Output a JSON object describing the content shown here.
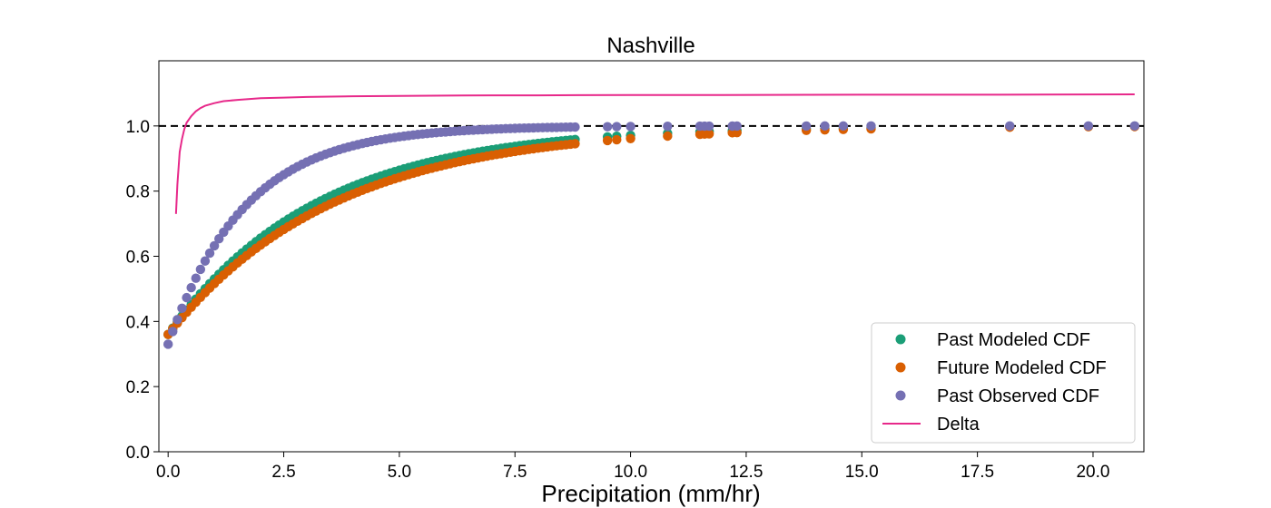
{
  "chart_data": {
    "type": "scatter",
    "title": "Nashville",
    "xlabel": "Precipitation (mm/hr)",
    "ylabel": "",
    "xlim": [
      -0.2,
      21.1
    ],
    "ylim": [
      0.0,
      1.2
    ],
    "xticks": [
      "0.0",
      "2.5",
      "5.0",
      "7.5",
      "10.0",
      "12.5",
      "15.0",
      "17.5",
      "20.0"
    ],
    "yticks": [
      "0.0",
      "0.2",
      "0.4",
      "0.6",
      "0.8",
      "1.0"
    ],
    "grid": false,
    "legend_position": "lower-right",
    "reference_line": {
      "y": 1.0,
      "style": "dashed",
      "color": "#000000"
    },
    "series": [
      {
        "name": "Past Modeled CDF",
        "kind": "scatter",
        "color": "#1b9e77",
        "model": {
          "type": "exp",
          "a": 0.36,
          "k": 0.31
        },
        "x_dense_range": [
          0.0,
          8.8
        ],
        "x_dense_step": 0.1,
        "x_sparse": [
          9.5,
          9.7,
          10.0,
          10.8,
          11.5,
          11.6,
          11.7,
          12.2,
          12.3,
          13.8,
          14.2,
          14.6,
          15.2,
          18.2,
          19.9,
          20.9
        ]
      },
      {
        "name": "Future Modeled CDF",
        "kind": "scatter",
        "color": "#d95f02",
        "model": {
          "type": "exp",
          "a": 0.36,
          "k": 0.28
        },
        "x_dense_range": [
          0.0,
          8.8
        ],
        "x_dense_step": 0.1,
        "x_sparse": [
          9.5,
          9.7,
          10.0,
          10.8,
          11.5,
          11.6,
          11.7,
          12.2,
          12.3,
          13.8,
          14.2,
          14.6,
          15.2,
          18.2,
          19.9,
          20.9
        ]
      },
      {
        "name": "Past Observed CDF",
        "kind": "scatter",
        "color": "#7570b3",
        "model": {
          "type": "exp",
          "a": 0.33,
          "k": 0.6
        },
        "x_dense_range": [
          0.0,
          8.8
        ],
        "x_dense_step": 0.1,
        "x_sparse": [
          9.5,
          9.7,
          10.0,
          10.8,
          11.5,
          11.6,
          11.7,
          12.2,
          12.3,
          13.8,
          14.2,
          14.6,
          15.2,
          18.2,
          19.9,
          20.9
        ]
      },
      {
        "name": "Delta",
        "kind": "line",
        "color": "#e7298a",
        "x": [
          0.17,
          0.2,
          0.25,
          0.3,
          0.35,
          0.4,
          0.5,
          0.6,
          0.7,
          0.8,
          1.0,
          1.2,
          1.5,
          2.0,
          2.5,
          3.0,
          4.0,
          5.0,
          6.0,
          7.0,
          8.0,
          10.0,
          12.0,
          15.0,
          18.0,
          20.9
        ],
        "y": [
          0.73,
          0.82,
          0.92,
          0.96,
          0.99,
          1.01,
          1.03,
          1.045,
          1.055,
          1.062,
          1.07,
          1.076,
          1.08,
          1.085,
          1.087,
          1.089,
          1.091,
          1.092,
          1.093,
          1.094,
          1.094,
          1.095,
          1.095,
          1.096,
          1.096,
          1.097
        ]
      }
    ]
  }
}
